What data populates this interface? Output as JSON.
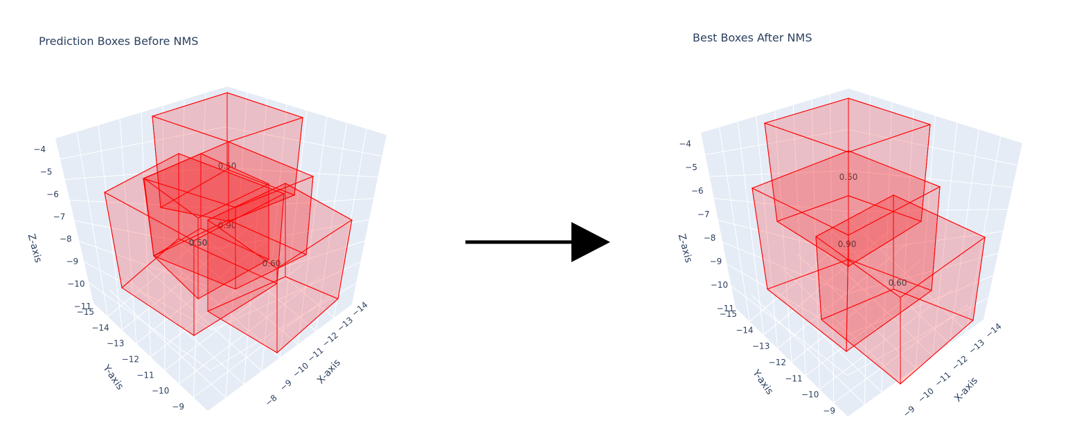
{
  "chart_data": [
    {
      "type": "3d-box",
      "title": "Prediction Boxes Before NMS",
      "xlabel": "X-axis",
      "ylabel": "Y-axis",
      "zlabel": "Z-axis",
      "x_ticks": [
        "−14",
        "−13",
        "−12",
        "−11",
        "−10",
        "−9",
        "−8"
      ],
      "y_ticks": [
        "−15",
        "−14",
        "−13",
        "−12",
        "−11",
        "−10",
        "−9"
      ],
      "z_ticks": [
        "−4",
        "−5",
        "−6",
        "−7",
        "−8",
        "−9",
        "−10",
        "−11"
      ],
      "boxes": [
        {
          "score": "0.50"
        },
        {
          "score": "0.90"
        },
        {
          "score": "0.50"
        },
        {
          "score": "0.60"
        },
        {
          "score": "0.50"
        }
      ],
      "box_color": "#ff0000"
    },
    {
      "type": "3d-box",
      "title": "Best Boxes After NMS",
      "xlabel": "X-axis",
      "ylabel": "Y-axis",
      "zlabel": "Z-axis",
      "x_ticks": [
        "−14",
        "−13",
        "−12",
        "−11",
        "−10",
        "−9"
      ],
      "y_ticks": [
        "−15",
        "−14",
        "−13",
        "−12",
        "−11",
        "−10",
        "−9"
      ],
      "z_ticks": [
        "−4",
        "−5",
        "−6",
        "−7",
        "−8",
        "−9",
        "−10",
        "−11"
      ],
      "boxes": [
        {
          "score": "0.50"
        },
        {
          "score": "0.90"
        },
        {
          "score": "0.60"
        }
      ],
      "box_color": "#ff0000"
    }
  ],
  "colors": {
    "scene_bg": "#e5ecf6",
    "grid": "#ffffff",
    "text": "#2a3f5f",
    "arrow": "#000000"
  }
}
